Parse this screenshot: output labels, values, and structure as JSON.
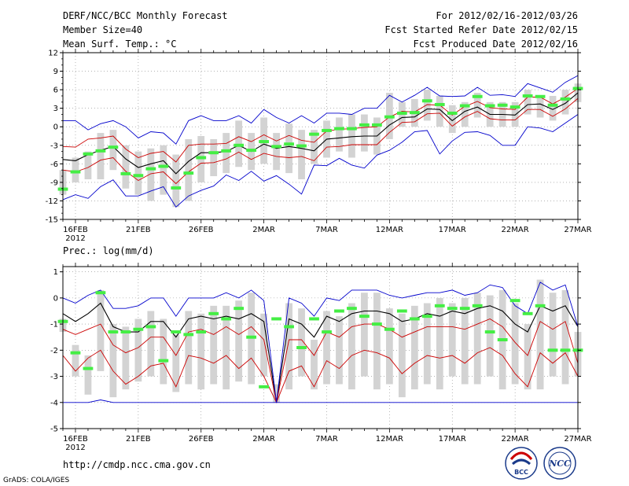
{
  "header": {
    "title": "DERF/NCC/BCC Monthly Forecast",
    "member_size": "Member Size=40",
    "variable_top": "Mean Surf. Temp.: °C",
    "period": "For 2012/02/16-2012/03/26",
    "started": "Fcst Started Refer Date 2012/02/15",
    "produced": "Fcst Produced Date 2012/02/16"
  },
  "footer": {
    "url": "http://cmdp.ncc.cma.gov.cn",
    "credit": "GrADS: COLA/IGES",
    "logo_bcc": "BCC",
    "logo_ncc": "NCC"
  },
  "colors": {
    "box": "#d3d3d3",
    "mean": "#000000",
    "spread": "#cc0000",
    "extreme": "#0000cc",
    "obs": "#44ee44",
    "frame": "#000000"
  },
  "chart_data": [
    {
      "type": "box",
      "title": "Mean Surf. Temp.: °C",
      "ylabel": "°C",
      "ylim": [
        -15,
        12
      ],
      "yticks": [
        12,
        9,
        6,
        3,
        0,
        -3,
        -6,
        -9,
        -12,
        -15
      ],
      "xlim": [
        0,
        41
      ],
      "xtick_labels": [
        {
          "x": 1,
          "label": "16FEB",
          "sub": "2012"
        },
        {
          "x": 6,
          "label": "21FEB"
        },
        {
          "x": 11,
          "label": "26FEB"
        },
        {
          "x": 16,
          "label": "2MAR"
        },
        {
          "x": 21,
          "label": "7MAR"
        },
        {
          "x": 26,
          "label": "12MAR"
        },
        {
          "x": 31,
          "label": "17MAR"
        },
        {
          "x": 36,
          "label": "22MAR"
        },
        {
          "x": 41,
          "label": "27MAR"
        }
      ],
      "series": [
        {
          "name": "ensemble mean",
          "color_key": "mean",
          "values": [
            -5.3,
            -5.5,
            -4.5,
            -3.8,
            -3.2,
            -5.2,
            -6.6,
            -6.0,
            -5.5,
            -7.6,
            -5.6,
            -4.2,
            -4.2,
            -4.0,
            -3.0,
            -4.0,
            -2.8,
            -3.5,
            -3.2,
            -3.5,
            -3.9,
            -2.0,
            -1.8,
            -1.6,
            -1.5,
            -1.5,
            0.3,
            1.5,
            1.6,
            2.9,
            2.8,
            1.0,
            2.5,
            3.2,
            2.0,
            2.0,
            1.9,
            3.6,
            3.7,
            2.8,
            3.8,
            5.5
          ]
        },
        {
          "name": "spread upper",
          "color_key": "spread",
          "values": [
            -3.2,
            -3.3,
            -2.0,
            -1.8,
            -1.5,
            -3.6,
            -5.0,
            -4.3,
            -4.0,
            -5.7,
            -3.0,
            -2.8,
            -2.8,
            -2.7,
            -1.6,
            -2.4,
            -1.3,
            -2.3,
            -1.4,
            -2.2,
            -2.5,
            -0.7,
            -0.4,
            -0.3,
            -0.1,
            0.0,
            1.6,
            2.5,
            2.4,
            3.6,
            3.5,
            1.9,
            3.3,
            4.1,
            3.1,
            2.9,
            2.8,
            4.8,
            4.8,
            3.7,
            4.8,
            6.2
          ]
        },
        {
          "name": "spread lower",
          "color_key": "spread",
          "values": [
            -7.0,
            -7.3,
            -6.6,
            -5.4,
            -5.0,
            -7.2,
            -8.7,
            -7.6,
            -7.3,
            -9.2,
            -7.3,
            -5.9,
            -5.8,
            -5.2,
            -4.1,
            -5.3,
            -4.3,
            -4.8,
            -5.0,
            -4.8,
            -5.5,
            -3.3,
            -3.2,
            -2.9,
            -2.9,
            -2.9,
            -0.9,
            0.7,
            0.8,
            2.1,
            2.2,
            0.1,
            1.6,
            2.5,
            1.3,
            1.1,
            1.1,
            2.8,
            2.8,
            1.7,
            2.9,
            4.6
          ]
        },
        {
          "name": "ensemble max",
          "color_key": "extreme",
          "values": [
            1.0,
            1.0,
            -0.5,
            0.5,
            1.0,
            0.0,
            -1.8,
            -0.8,
            -1.0,
            -2.8,
            1.0,
            1.8,
            1.0,
            1.0,
            1.8,
            0.6,
            2.8,
            1.5,
            0.6,
            1.8,
            0.6,
            2.2,
            2.2,
            2.0,
            3.0,
            3.0,
            5.1,
            4.0,
            5.1,
            6.4,
            5.0,
            4.9,
            5.0,
            6.4,
            5.1,
            5.2,
            4.9,
            7.0,
            6.3,
            5.6,
            7.2,
            8.3
          ]
        },
        {
          "name": "ensemble min",
          "color_key": "extreme",
          "values": [
            -11.8,
            -11.0,
            -11.6,
            -9.7,
            -8.6,
            -11.2,
            -11.2,
            -10.4,
            -9.7,
            -13.0,
            -11.2,
            -10.3,
            -9.6,
            -7.8,
            -8.7,
            -7.2,
            -8.8,
            -7.9,
            -9.3,
            -10.9,
            -6.2,
            -6.3,
            -5.1,
            -6.2,
            -6.7,
            -4.6,
            -3.8,
            -2.5,
            -0.8,
            -0.6,
            -4.4,
            -2.3,
            -0.9,
            -0.8,
            -1.4,
            -3.0,
            -3.0,
            0.0,
            -0.2,
            -0.8,
            0.6,
            2.0
          ]
        }
      ],
      "boxes": [
        [
          -11,
          -7
        ],
        [
          -9,
          -5
        ],
        [
          -8.5,
          -4
        ],
        [
          -8.5,
          -1
        ],
        [
          -7,
          -0.5
        ],
        [
          -10,
          -3
        ],
        [
          -11,
          -4
        ],
        [
          -12,
          -3.5
        ],
        [
          -11,
          -3
        ],
        [
          -13,
          -4.5
        ],
        [
          -12,
          -2
        ],
        [
          -9,
          -1.5
        ],
        [
          -8,
          -2
        ],
        [
          -7.5,
          -1
        ],
        [
          -6.5,
          1
        ],
        [
          -7,
          -1
        ],
        [
          -6,
          1.5
        ],
        [
          -7,
          -1
        ],
        [
          -7.5,
          0.5
        ],
        [
          -8.5,
          -0.5
        ],
        [
          -6,
          -0.5
        ],
        [
          -5,
          1
        ],
        [
          -4,
          1.5
        ],
        [
          -5,
          2
        ],
        [
          -4,
          2
        ],
        [
          -4.5,
          1.5
        ],
        [
          -2,
          5.5
        ],
        [
          0,
          4
        ],
        [
          0,
          4.5
        ],
        [
          1,
          6
        ],
        [
          0,
          5
        ],
        [
          -1,
          3.5
        ],
        [
          0,
          4
        ],
        [
          1.5,
          5.5
        ],
        [
          0,
          4
        ],
        [
          0,
          4
        ],
        [
          0,
          4
        ],
        [
          2,
          6
        ],
        [
          1.5,
          5
        ],
        [
          1,
          5
        ],
        [
          2,
          6
        ],
        [
          4,
          7
        ]
      ],
      "obs": [
        -10.1,
        -7.3,
        -4.4,
        -3.9,
        -3.3,
        -7.6,
        -7.9,
        -6.8,
        -6.4,
        -9.9,
        -7.5,
        -5.0,
        -4.2,
        -3.9,
        -3.0,
        -3.8,
        -2.4,
        -3.2,
        -2.8,
        -3.1,
        -1.2,
        -0.6,
        -0.3,
        -0.3,
        0.3,
        0.3,
        1.6,
        2.2,
        2.3,
        4.2,
        3.6,
        2.2,
        3.4,
        4.9,
        3.4,
        3.5,
        3.2,
        5.0,
        4.9,
        3.5,
        4.5,
        6.2
      ]
    },
    {
      "type": "box",
      "title": "Prec.: log(mm/d)",
      "ylabel": "log(mm/d)",
      "ylim": [
        -5,
        1.2
      ],
      "yticks": [
        1,
        0,
        -1,
        -2,
        -3,
        -4,
        -5
      ],
      "xlim": [
        0,
        41
      ],
      "xtick_labels": [
        {
          "x": 1,
          "label": "16FEB",
          "sub": "2012"
        },
        {
          "x": 6,
          "label": "21FEB"
        },
        {
          "x": 11,
          "label": "26FEB"
        },
        {
          "x": 16,
          "label": "2MAR"
        },
        {
          "x": 21,
          "label": "7MAR"
        },
        {
          "x": 26,
          "label": "12MAR"
        },
        {
          "x": 31,
          "label": "17MAR"
        },
        {
          "x": 36,
          "label": "22MAR"
        },
        {
          "x": 41,
          "label": "27MAR"
        }
      ],
      "series": [
        {
          "name": "ensemble mean",
          "color_key": "mean",
          "values": [
            -0.6,
            -0.9,
            -0.6,
            -0.2,
            -1.1,
            -1.3,
            -1.3,
            -0.9,
            -0.9,
            -1.5,
            -0.8,
            -0.7,
            -0.8,
            -0.7,
            -0.8,
            -0.6,
            -0.9,
            -4.0,
            -0.8,
            -1.0,
            -1.5,
            -0.7,
            -0.9,
            -0.6,
            -0.5,
            -0.5,
            -0.6,
            -0.9,
            -0.8,
            -0.6,
            -0.7,
            -0.5,
            -0.6,
            -0.4,
            -0.3,
            -0.5,
            -1.0,
            -1.3,
            -0.3,
            -0.5,
            -0.3,
            -1.1
          ]
        },
        {
          "name": "spread upper",
          "color_key": "spread",
          "values": [
            -1.2,
            -1.4,
            -1.2,
            -1.0,
            -1.8,
            -2.1,
            -1.9,
            -1.5,
            -1.5,
            -2.2,
            -1.3,
            -1.2,
            -1.4,
            -1.1,
            -1.4,
            -1.1,
            -1.6,
            -4.0,
            -1.6,
            -1.6,
            -2.2,
            -1.3,
            -1.5,
            -1.1,
            -1.0,
            -1.0,
            -1.2,
            -1.5,
            -1.3,
            -1.1,
            -1.1,
            -1.1,
            -1.2,
            -1.0,
            -0.8,
            -1.1,
            -1.7,
            -2.2,
            -0.9,
            -1.2,
            -0.9,
            -2.5
          ]
        },
        {
          "name": "spread lower",
          "color_key": "spread",
          "values": [
            -2.2,
            -2.8,
            -2.3,
            -2.0,
            -2.8,
            -3.3,
            -3.0,
            -2.6,
            -2.5,
            -3.4,
            -2.2,
            -2.3,
            -2.5,
            -2.2,
            -2.7,
            -2.3,
            -3.0,
            -4.0,
            -2.8,
            -2.6,
            -3.4,
            -2.4,
            -2.7,
            -2.2,
            -2.0,
            -2.1,
            -2.3,
            -2.9,
            -2.5,
            -2.2,
            -2.3,
            -2.2,
            -2.5,
            -2.1,
            -1.9,
            -2.2,
            -2.9,
            -3.4,
            -2.1,
            -2.5,
            -2.1,
            -3.0
          ]
        },
        {
          "name": "ensemble max",
          "color_key": "extreme",
          "values": [
            0.0,
            -0.2,
            0.1,
            0.3,
            -0.4,
            -0.4,
            -0.3,
            0.0,
            0.0,
            -0.7,
            0.0,
            0.0,
            0.0,
            0.2,
            0.0,
            0.3,
            -0.1,
            -4.0,
            0.0,
            -0.2,
            -0.7,
            0.0,
            -0.1,
            0.3,
            0.3,
            0.3,
            0.1,
            0.0,
            0.1,
            0.2,
            0.2,
            0.3,
            0.1,
            0.2,
            0.5,
            0.4,
            -0.3,
            -0.6,
            0.6,
            0.3,
            0.5,
            -1.1
          ]
        },
        {
          "name": "ensemble min",
          "color_key": "extreme",
          "values": [
            -4.0,
            -4.0,
            -4.0,
            -3.9,
            -4.0,
            -4.0,
            -4.0,
            -4.0,
            -4.0,
            -4.0,
            -4.0,
            -4.0,
            -4.0,
            -4.0,
            -4.0,
            -4.0,
            -4.0,
            -4.0,
            -4.0,
            -4.0,
            -4.0,
            -4.0,
            -4.0,
            -4.0,
            -4.0,
            -4.0,
            -4.0,
            -4.0,
            -4.0,
            -4.0,
            -4.0,
            -4.0,
            -4.0,
            -4.0,
            -4.0,
            -4.0,
            -4.0,
            -4.0,
            -4.0,
            -4.0,
            -4.0,
            -4.0
          ]
        }
      ],
      "boxes": [
        [
          -1.3,
          -0.8
        ],
        [
          -3.0,
          -1.8
        ],
        [
          -3.7,
          -2.2
        ],
        [
          -2.8,
          0.3
        ],
        [
          -3.8,
          -1.0
        ],
        [
          -3.5,
          -1.1
        ],
        [
          -3.2,
          -0.8
        ],
        [
          -3.0,
          -0.5
        ],
        [
          -3.3,
          -0.8
        ],
        [
          -3.6,
          -1.4
        ],
        [
          -3.3,
          -0.5
        ],
        [
          -3.5,
          -0.6
        ],
        [
          -3.3,
          -0.3
        ],
        [
          -3.5,
          -0.3
        ],
        [
          -3.2,
          -0.1
        ],
        [
          -3.3,
          0.2
        ],
        [
          -3.0,
          -0.6
        ],
        [
          -4.0,
          -3.3
        ],
        [
          -3.5,
          -0.2
        ],
        [
          -3.0,
          -0.4
        ],
        [
          -3.5,
          -1.6
        ],
        [
          -3.3,
          -0.5
        ],
        [
          -3.3,
          -0.7
        ],
        [
          -3.5,
          -0.2
        ],
        [
          -3.0,
          0.2
        ],
        [
          -3.5,
          0.2
        ],
        [
          -3.3,
          -0.4
        ],
        [
          -3.8,
          -0.6
        ],
        [
          -3.5,
          -0.3
        ],
        [
          -3.3,
          -0.2
        ],
        [
          -3.5,
          0.0
        ],
        [
          -3.0,
          -0.2
        ],
        [
          -3.3,
          0.0
        ],
        [
          -3.3,
          0.2
        ],
        [
          -3.0,
          0.1
        ],
        [
          -3.5,
          0.3
        ],
        [
          -3.3,
          -0.2
        ],
        [
          -3.5,
          -1.0
        ],
        [
          -3.5,
          0.7
        ],
        [
          -3.0,
          0.2
        ],
        [
          -3.3,
          0.3
        ],
        [
          -3.0,
          -1.3
        ]
      ],
      "obs": [
        -0.9,
        -2.1,
        -2.7,
        0.2,
        -1.3,
        -1.3,
        -1.2,
        -1.1,
        -2.4,
        -1.3,
        -1.4,
        -1.3,
        -0.6,
        -0.8,
        -0.4,
        -1.5,
        -3.4,
        -0.8,
        -1.1,
        -1.9,
        -0.8,
        -1.3,
        -0.5,
        -0.4,
        -0.7,
        -1.0,
        -1.2,
        -0.5,
        -0.8,
        -0.7,
        -0.3,
        -0.4,
        -0.4,
        -0.3,
        -1.3,
        -1.6,
        -0.1,
        -0.6,
        -0.3,
        -2.0,
        -2.0,
        -2.0
      ]
    }
  ]
}
